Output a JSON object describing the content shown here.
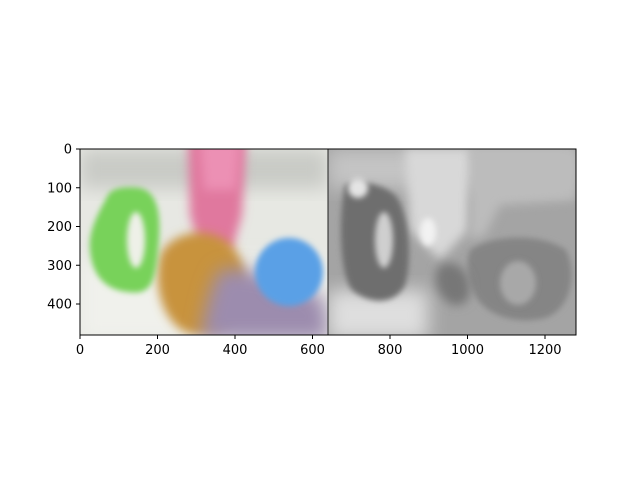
{
  "figure": {
    "panels": [
      {
        "name": "color-image",
        "x_range": [
          0,
          640
        ]
      },
      {
        "name": "grayscale-image",
        "x_range": [
          640,
          1280
        ]
      }
    ],
    "x_axis": {
      "ticks": [
        0,
        200,
        400,
        600,
        800,
        1000,
        1200
      ],
      "range": [
        0,
        1280
      ]
    },
    "y_axis": {
      "ticks": [
        0,
        100,
        200,
        300,
        400
      ],
      "range": [
        0,
        480
      ],
      "inverted": true
    }
  }
}
